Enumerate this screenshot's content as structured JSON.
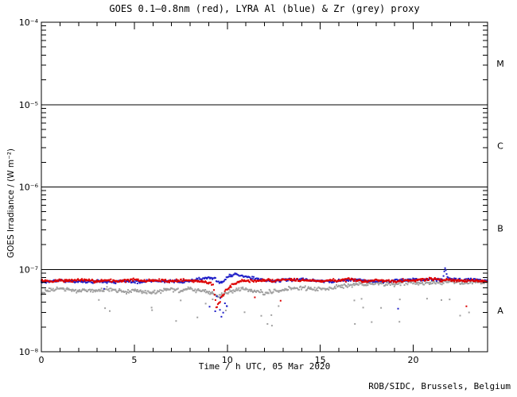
{
  "colors": {
    "red": "#dd0000",
    "blue": "#2020c8",
    "grey": "#a0a0a0",
    "axis": "#000000",
    "background": "#ffffff"
  },
  "chart_data": {
    "type": "scatter",
    "title": "GOES 0.1–0.8nm (red), LYRA Al (blue) & Zr (grey) proxy",
    "xlabel": "Time / h UTC, 05 Mar 2020",
    "ylabel": "GOES Irradiance / (W m⁻²)",
    "credit": "ROB/SIDC, Brussels, Belgium",
    "x_range": [
      0,
      24
    ],
    "x_major_ticks": [
      0,
      5,
      10,
      15,
      20
    ],
    "x_minor_step_h": 1,
    "y_scale": "log",
    "y_log_range": [
      -8,
      -4
    ],
    "y_tick_labels": [
      "10⁻⁴",
      "10⁻⁵",
      "10⁻⁶",
      "10⁻⁷",
      "10⁻⁸"
    ],
    "y_tick_exponents": [
      -4,
      -5,
      -6,
      -7,
      -8
    ],
    "flare_class_lines_wm2": [
      1e-05,
      1e-06,
      1e-07
    ],
    "flare_class_labels": [
      {
        "label": "M",
        "at_log10_wm2": -4.5
      },
      {
        "label": "C",
        "at_log10_wm2": -5.5
      },
      {
        "label": "B",
        "at_log10_wm2": -6.5
      },
      {
        "label": "A",
        "at_log10_wm2": -7.5
      }
    ],
    "grid": false,
    "legend_position": "in-title",
    "series": [
      {
        "key": "lyra-zr",
        "name": "LYRA Zr proxy",
        "color_key": "grey",
        "seed": 31,
        "noise_dex": 0.03,
        "sample_step_h": 0.042,
        "anchors": [
          [
            0,
            5.2e-08
          ],
          [
            0.5,
            5.6e-08
          ],
          [
            1,
            5.9e-08
          ],
          [
            1.5,
            5.6e-08
          ],
          [
            2,
            5.4e-08
          ],
          [
            2.5,
            5.7e-08
          ],
          [
            3,
            5.5e-08
          ],
          [
            3.5,
            5.8e-08
          ],
          [
            4,
            5.5e-08
          ],
          [
            4.5,
            5.3e-08
          ],
          [
            5,
            5.6e-08
          ],
          [
            5.5,
            5.4e-08
          ],
          [
            6,
            5.2e-08
          ],
          [
            6.5,
            5.5e-08
          ],
          [
            7,
            5.7e-08
          ],
          [
            7.5,
            5.5e-08
          ],
          [
            8,
            5.8e-08
          ],
          [
            8.5,
            5.5e-08
          ],
          [
            9,
            5.3e-08
          ],
          [
            9.5,
            4.7e-08
          ],
          [
            9.8,
            5e-08
          ],
          [
            10,
            5.3e-08
          ],
          [
            10.5,
            5.6e-08
          ],
          [
            11,
            5.8e-08
          ],
          [
            11.5,
            5.5e-08
          ],
          [
            12,
            5.2e-08
          ],
          [
            12.5,
            5.4e-08
          ],
          [
            13,
            5.7e-08
          ],
          [
            13.5,
            5.9e-08
          ],
          [
            14,
            6e-08
          ],
          [
            14.5,
            5.8e-08
          ],
          [
            15,
            5.7e-08
          ],
          [
            15.5,
            5.9e-08
          ],
          [
            16,
            6.2e-08
          ],
          [
            16.5,
            6.4e-08
          ],
          [
            17,
            6.6e-08
          ],
          [
            17.5,
            6.5e-08
          ],
          [
            18,
            6.8e-08
          ],
          [
            18.5,
            6.7e-08
          ],
          [
            19,
            6.6e-08
          ],
          [
            19.5,
            6.9e-08
          ],
          [
            20,
            7e-08
          ],
          [
            20.5,
            6.8e-08
          ],
          [
            21,
            7e-08
          ],
          [
            21.5,
            6.9e-08
          ],
          [
            22,
            7.2e-08
          ],
          [
            22.5,
            7e-08
          ],
          [
            23,
            7.1e-08
          ],
          [
            23.5,
            7e-08
          ],
          [
            24,
            7.1e-08
          ]
        ],
        "outliers": [
          {
            "count": 30,
            "h_range": [
              0,
              24
            ],
            "v_range": [
              2e-08,
              4.5e-08
            ]
          }
        ]
      },
      {
        "key": "lyra-al",
        "name": "LYRA Al proxy",
        "color_key": "blue",
        "seed": 17,
        "noise_dex": 0.02,
        "sample_step_h": 0.042,
        "anchors": [
          [
            0,
            7e-08
          ],
          [
            0.5,
            7.2e-08
          ],
          [
            1,
            7.4e-08
          ],
          [
            1.5,
            7.1e-08
          ],
          [
            2,
            7.2e-08
          ],
          [
            2.5,
            7e-08
          ],
          [
            3,
            7.2e-08
          ],
          [
            3.5,
            7.1e-08
          ],
          [
            4,
            7e-08
          ],
          [
            4.5,
            7.2e-08
          ],
          [
            5,
            7e-08
          ],
          [
            5.5,
            7.1e-08
          ],
          [
            6,
            7.3e-08
          ],
          [
            6.5,
            7.1e-08
          ],
          [
            7,
            7.2e-08
          ],
          [
            7.5,
            7e-08
          ],
          [
            8,
            7.3e-08
          ],
          [
            8.5,
            7.6e-08
          ],
          [
            9,
            7.9e-08
          ],
          [
            9.3,
            7.8e-08
          ],
          [
            9.5,
            7.2e-08
          ],
          [
            9.7,
            6.9e-08
          ],
          [
            9.9,
            7.5e-08
          ],
          [
            10.1,
            8.4e-08
          ],
          [
            10.5,
            8.7e-08
          ],
          [
            10.9,
            8.3e-08
          ],
          [
            11.3,
            7.9e-08
          ],
          [
            11.7,
            7.5e-08
          ],
          [
            12,
            7.3e-08
          ],
          [
            12.5,
            7.2e-08
          ],
          [
            13,
            7.4e-08
          ],
          [
            13.5,
            7.5e-08
          ],
          [
            14,
            7.6e-08
          ],
          [
            14.5,
            7.4e-08
          ],
          [
            15,
            7.2e-08
          ],
          [
            15.5,
            7.1e-08
          ],
          [
            16,
            7.3e-08
          ],
          [
            16.5,
            7.4e-08
          ],
          [
            17,
            7.5e-08
          ],
          [
            17.5,
            7.3e-08
          ],
          [
            18,
            7.2e-08
          ],
          [
            18.5,
            7.1e-08
          ],
          [
            19,
            7.3e-08
          ],
          [
            19.5,
            7.4e-08
          ],
          [
            20,
            7.5e-08
          ],
          [
            20.5,
            7.4e-08
          ],
          [
            21,
            7.6e-08
          ],
          [
            21.6,
            7.5e-08
          ],
          [
            21.72,
            1.05e-07
          ],
          [
            21.8,
            8.6e-08
          ],
          [
            21.9,
            7.7e-08
          ],
          [
            22.3,
            7.5e-08
          ],
          [
            22.8,
            7.4e-08
          ],
          [
            23.3,
            7.6e-08
          ],
          [
            23.7,
            7.3e-08
          ],
          [
            24,
            7.4e-08
          ]
        ],
        "outliers": [
          {
            "count": 9,
            "h_range": [
              9.3,
              10.0
            ],
            "v_range": [
              2.4e-08,
              5.5e-08
            ]
          },
          {
            "count": 3,
            "h_range": [
              0,
              24
            ],
            "v_range": [
              3e-08,
              6e-08
            ]
          }
        ]
      },
      {
        "key": "goes-xray",
        "name": "GOES 0.1–0.8nm",
        "color_key": "red",
        "seed": 7,
        "noise_dex": 0.022,
        "sample_step_h": 0.042,
        "anchors": [
          [
            0,
            7.3e-08
          ],
          [
            0.5,
            7.1e-08
          ],
          [
            1,
            7.4e-08
          ],
          [
            1.5,
            7.2e-08
          ],
          [
            2,
            7.5e-08
          ],
          [
            2.5,
            7.3e-08
          ],
          [
            3,
            7.2e-08
          ],
          [
            3.5,
            7.4e-08
          ],
          [
            4,
            7.2e-08
          ],
          [
            4.5,
            7.3e-08
          ],
          [
            5,
            7.5e-08
          ],
          [
            5.5,
            7.2e-08
          ],
          [
            6,
            7.4e-08
          ],
          [
            6.5,
            7.3e-08
          ],
          [
            7,
            7.2e-08
          ],
          [
            7.5,
            7.4e-08
          ],
          [
            8,
            7.3e-08
          ],
          [
            8.5,
            7.2e-08
          ],
          [
            9,
            7e-08
          ],
          [
            9.25,
            6.5e-08
          ],
          [
            9.42,
            3.3e-08
          ],
          [
            9.55,
            3.9e-08
          ],
          [
            9.7,
            4.6e-08
          ],
          [
            9.9,
            5.4e-08
          ],
          [
            10.1,
            6e-08
          ],
          [
            10.35,
            6.7e-08
          ],
          [
            10.6,
            7.1e-08
          ],
          [
            11,
            7.3e-08
          ],
          [
            11.5,
            7.2e-08
          ],
          [
            12,
            7.4e-08
          ],
          [
            12.5,
            7.3e-08
          ],
          [
            13,
            7.5e-08
          ],
          [
            13.5,
            7.6e-08
          ],
          [
            14,
            7.4e-08
          ],
          [
            14.5,
            7.3e-08
          ],
          [
            15,
            7.2e-08
          ],
          [
            15.5,
            7.4e-08
          ],
          [
            16,
            7.3e-08
          ],
          [
            16.5,
            7.5e-08
          ],
          [
            17,
            7.3e-08
          ],
          [
            17.5,
            7.2e-08
          ],
          [
            18,
            7.4e-08
          ],
          [
            18.5,
            7.3e-08
          ],
          [
            19,
            7.2e-08
          ],
          [
            19.5,
            7.4e-08
          ],
          [
            20,
            7.3e-08
          ],
          [
            20.5,
            7.5e-08
          ],
          [
            21,
            7.7e-08
          ],
          [
            21.5,
            7.4e-08
          ],
          [
            22,
            7.5e-08
          ],
          [
            22.5,
            7.3e-08
          ],
          [
            23,
            7.4e-08
          ],
          [
            23.5,
            7.2e-08
          ],
          [
            24,
            7.3e-08
          ]
        ],
        "outliers": [
          {
            "count": 3,
            "h_range": [
              0,
              24
            ],
            "v_range": [
              3.5e-08,
              5.5e-08
            ]
          }
        ]
      }
    ]
  }
}
